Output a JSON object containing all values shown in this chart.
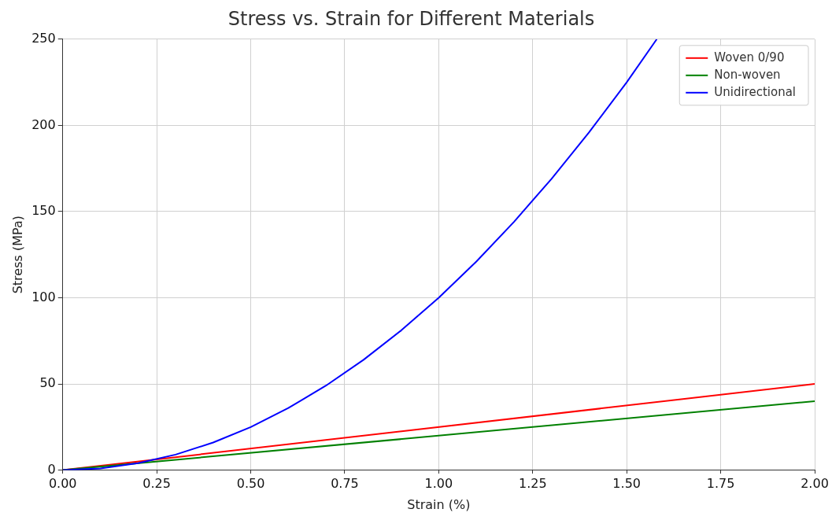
{
  "chart_data": {
    "type": "line",
    "title": "Stress vs. Strain for Different Materials",
    "xlabel": "Strain (%)",
    "ylabel": "Stress (MPa)",
    "xlim": [
      0,
      2
    ],
    "xticks": [
      {
        "value": 0,
        "label": "0.00"
      },
      {
        "value": 0.25,
        "label": "0.25"
      },
      {
        "value": 0.5,
        "label": "0.50"
      },
      {
        "value": 0.75,
        "label": "0.75"
      },
      {
        "value": 1,
        "label": "1.00"
      },
      {
        "value": 1.25,
        "label": "1.25"
      },
      {
        "value": 1.5,
        "label": "1.50"
      },
      {
        "value": 1.75,
        "label": "1.75"
      },
      {
        "value": 2,
        "label": "2.00"
      }
    ],
    "ylim": [
      0,
      250
    ],
    "yticks": [
      0,
      50,
      100,
      150,
      200,
      250
    ],
    "grid": true,
    "legend": "top right",
    "marker": "none",
    "line_style": "solid",
    "series": [
      {
        "name": "Woven 0/90",
        "color": "#ff0000",
        "x": [
          0,
          2
        ],
        "values": [
          0,
          50
        ]
      },
      {
        "name": "Non-woven",
        "color": "#008000",
        "x": [
          0,
          2
        ],
        "values": [
          0,
          40
        ]
      },
      {
        "name": "Unidirectional",
        "color": "#0000ff",
        "x": [
          0,
          0.1,
          0.2,
          0.3,
          0.4,
          0.5,
          0.6,
          0.7,
          0.8,
          0.9,
          1.0,
          1.1,
          1.2,
          1.3,
          1.4,
          1.5,
          1.58
        ],
        "values": [
          0,
          1,
          4,
          9,
          16,
          25,
          36,
          49,
          64,
          81,
          100,
          121,
          144,
          169,
          196,
          225,
          250
        ]
      }
    ]
  }
}
